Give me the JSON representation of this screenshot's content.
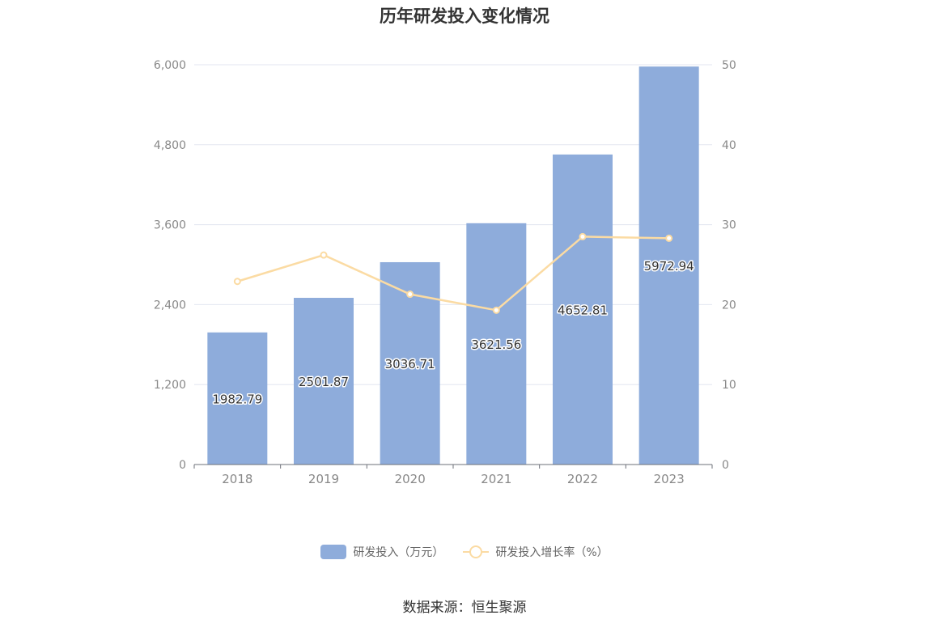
{
  "title": "历年研发投入变化情况",
  "source": "数据来源：恒生聚源",
  "legend": {
    "bar_label": "研发投入（万元）",
    "line_label": "研发投入增长率（%）"
  },
  "colors": {
    "bar": "#8eacdb",
    "line": "#fbdba3",
    "axis_text": "#888888",
    "grid": "#e3e6f0"
  },
  "chart_data": {
    "type": "bar",
    "categories": [
      "2018",
      "2019",
      "2020",
      "2021",
      "2022",
      "2023"
    ],
    "series": [
      {
        "name": "研发投入（万元）",
        "type": "bar",
        "axis": "left",
        "values": [
          1982.79,
          2501.87,
          3036.71,
          3621.56,
          4652.81,
          5972.94
        ],
        "labels": [
          "1982.79",
          "2501.87",
          "3036.71",
          "3621.56",
          "4652.81",
          "5972.94"
        ]
      },
      {
        "name": "研发投入增长率（%）",
        "type": "line",
        "axis": "right",
        "values": [
          22.9,
          26.2,
          21.3,
          19.3,
          28.5,
          28.3
        ]
      }
    ],
    "y_left": {
      "min": 0,
      "max": 6000,
      "ticks": [
        0,
        1200,
        2400,
        3600,
        4800,
        6000
      ],
      "tick_labels": [
        "0",
        "1,200",
        "2,400",
        "3,600",
        "4,800",
        "6,000"
      ]
    },
    "y_right": {
      "min": 0,
      "max": 50,
      "ticks": [
        0,
        10,
        20,
        30,
        40,
        50
      ],
      "tick_labels": [
        "0",
        "10",
        "20",
        "30",
        "40",
        "50"
      ]
    },
    "grid": true,
    "legend_position": "bottom"
  }
}
